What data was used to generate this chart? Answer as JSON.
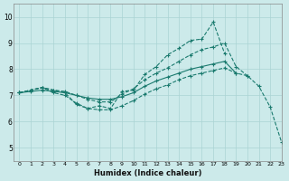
{
  "xlabel": "Humidex (Indice chaleur)",
  "bg_color": "#cceaea",
  "line_color": "#1a7a6e",
  "grid_color": "#aad4d4",
  "xlim": [
    -0.5,
    23
  ],
  "ylim": [
    4.5,
    10.5
  ],
  "xticks": [
    0,
    1,
    2,
    3,
    4,
    5,
    6,
    7,
    8,
    9,
    10,
    11,
    12,
    13,
    14,
    15,
    16,
    17,
    18,
    19,
    20,
    21,
    22,
    23
  ],
  "yticks": [
    5,
    6,
    7,
    8,
    9,
    10
  ],
  "lines": [
    {
      "x": [
        0,
        1,
        2,
        3,
        4,
        5,
        6,
        7,
        8,
        9,
        10,
        11,
        12,
        13,
        14,
        15,
        16,
        17,
        18,
        19,
        20,
        21,
        22,
        23
      ],
      "y": [
        7.1,
        7.2,
        7.3,
        7.2,
        7.1,
        6.65,
        6.5,
        6.6,
        6.5,
        7.15,
        7.2,
        7.8,
        8.1,
        8.55,
        8.8,
        9.1,
        9.15,
        9.8,
        8.6,
        null,
        null,
        null,
        null,
        null
      ],
      "style": "--",
      "has_markers": true
    },
    {
      "x": [
        0,
        1,
        2,
        3,
        4,
        5,
        6,
        7,
        8,
        9,
        10,
        11,
        12,
        13,
        14,
        15,
        16,
        17,
        18,
        19,
        20,
        21,
        22,
        23
      ],
      "y": [
        7.1,
        7.2,
        7.3,
        7.2,
        7.15,
        7.0,
        6.85,
        6.75,
        6.75,
        7.05,
        7.25,
        7.6,
        7.85,
        8.05,
        8.3,
        8.55,
        8.75,
        8.85,
        9.0,
        8.1,
        7.75,
        null,
        null,
        null
      ],
      "style": "--",
      "has_markers": true
    },
    {
      "x": [
        0,
        1,
        2,
        3,
        4,
        5,
        6,
        7,
        8,
        9,
        10,
        11,
        12,
        13,
        14,
        15,
        16,
        17,
        18,
        19,
        20,
        21,
        22,
        23
      ],
      "y": [
        7.1,
        7.15,
        7.2,
        7.15,
        7.1,
        7.0,
        6.9,
        6.85,
        6.85,
        6.95,
        7.1,
        7.35,
        7.55,
        7.7,
        7.85,
        8.0,
        8.1,
        8.2,
        8.3,
        7.85,
        null,
        null,
        null,
        null
      ],
      "style": "-",
      "has_markers": true
    },
    {
      "x": [
        0,
        1,
        2,
        3,
        4,
        5,
        6,
        7,
        8,
        9,
        10,
        11,
        12,
        13,
        14,
        15,
        16,
        17,
        18,
        19,
        20,
        21,
        22,
        23
      ],
      "y": [
        7.1,
        7.2,
        7.3,
        7.1,
        7.0,
        6.7,
        6.5,
        6.45,
        6.45,
        6.6,
        6.8,
        7.05,
        7.25,
        7.4,
        7.6,
        7.75,
        7.85,
        7.95,
        8.05,
        7.85,
        7.75,
        7.35,
        6.55,
        5.2
      ],
      "style": "--",
      "has_markers": true
    }
  ]
}
